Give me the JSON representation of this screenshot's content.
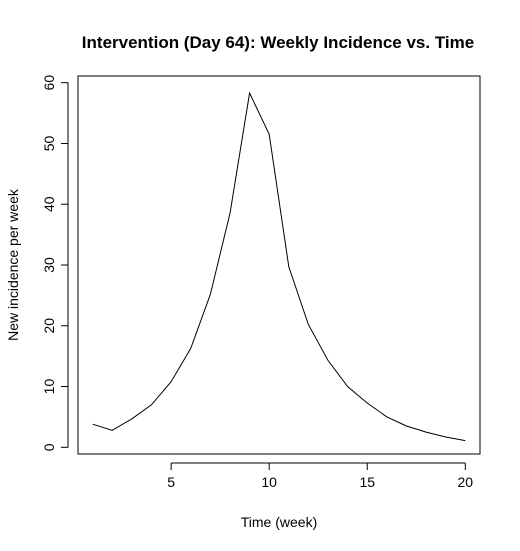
{
  "chart_data": {
    "type": "line",
    "title": "Intervention (Day 64): Weekly Incidence vs. Time",
    "xlabel": "Time (week)",
    "ylabel": "New incidence per week",
    "xlim": [
      0.25,
      20.75
    ],
    "ylim": [
      -1.1,
      61.1
    ],
    "grid": false,
    "x_ticks": [
      5,
      10,
      15,
      20
    ],
    "y_ticks": [
      0,
      10,
      20,
      30,
      40,
      50,
      60
    ],
    "x": [
      1,
      2,
      3,
      4,
      5,
      6,
      7,
      8,
      9,
      10,
      11,
      12,
      13,
      14,
      15,
      16,
      17,
      18,
      19,
      20
    ],
    "y": [
      3.8,
      2.8,
      4.7,
      7.0,
      10.8,
      16.3,
      25.2,
      38.5,
      58.3,
      51.5,
      29.7,
      20.2,
      14.3,
      10.0,
      7.3,
      5.0,
      3.5,
      2.5,
      1.7,
      1.1
    ]
  }
}
